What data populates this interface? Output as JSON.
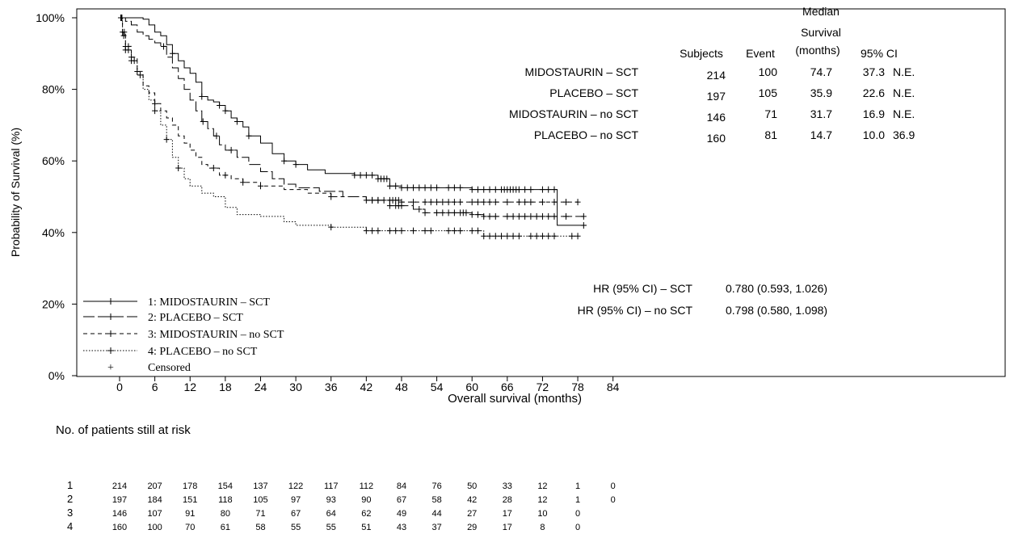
{
  "chart_data": {
    "type": "line",
    "subtype": "kaplan-meier",
    "ylabel": "Probability of Survival (%)",
    "xlabel": "Overall survival (months)",
    "xlim": [
      -7,
      84
    ],
    "ylim": [
      0,
      100
    ],
    "x_ticks": [
      0,
      6,
      12,
      18,
      24,
      30,
      36,
      42,
      48,
      54,
      60,
      66,
      72,
      78,
      84
    ],
    "y_ticks": [
      {
        "value": 0,
        "label": "0%"
      },
      {
        "value": 20,
        "label": "20%"
      },
      {
        "value": 40,
        "label": "40%"
      },
      {
        "value": 60,
        "label": "60%"
      },
      {
        "value": 80,
        "label": "80%"
      },
      {
        "value": 100,
        "label": "100%"
      }
    ],
    "series": [
      {
        "name": "1: MIDOSTAURIN – SCT",
        "dash": "solid",
        "end_x": 79.5,
        "points": [
          [
            0,
            100
          ],
          [
            2,
            100
          ],
          [
            4,
            99.6
          ],
          [
            5,
            98
          ],
          [
            6,
            96
          ],
          [
            7,
            95
          ],
          [
            8,
            92.5
          ],
          [
            9,
            90
          ],
          [
            10,
            88
          ],
          [
            11,
            86
          ],
          [
            12,
            84.5
          ],
          [
            13,
            82
          ],
          [
            14,
            78
          ],
          [
            15,
            77
          ],
          [
            16,
            76.5
          ],
          [
            17,
            75.5
          ],
          [
            18,
            74
          ],
          [
            19,
            72
          ],
          [
            20,
            71
          ],
          [
            21,
            69.5
          ],
          [
            22,
            67
          ],
          [
            24,
            65
          ],
          [
            26,
            62
          ],
          [
            28,
            60
          ],
          [
            30,
            59
          ],
          [
            32,
            57.5
          ],
          [
            35,
            56.5
          ],
          [
            40,
            56
          ],
          [
            44,
            55
          ],
          [
            46,
            53
          ],
          [
            48,
            52.5
          ],
          [
            55,
            52.5
          ],
          [
            60,
            52
          ],
          [
            74.5,
            52
          ],
          [
            74.5,
            42
          ],
          [
            79.5,
            42
          ]
        ],
        "censor": [
          9,
          14,
          17,
          18,
          20,
          22,
          28,
          30,
          40,
          41,
          42,
          43,
          44,
          44.5,
          45,
          45.5,
          46,
          47,
          48,
          49,
          50,
          51,
          52,
          53,
          54,
          56,
          57,
          58,
          60,
          61,
          62,
          63,
          64,
          65,
          65.5,
          66,
          66.5,
          67,
          67.5,
          68,
          69,
          70,
          72,
          73,
          74,
          79
        ]
      },
      {
        "name": "2: PLACEBO – SCT",
        "dash": "long-dash",
        "end_x": 79,
        "points": [
          [
            0,
            100
          ],
          [
            1,
            99
          ],
          [
            2,
            98
          ],
          [
            3,
            96
          ],
          [
            4,
            95
          ],
          [
            5,
            94
          ],
          [
            6,
            93
          ],
          [
            7,
            92
          ],
          [
            8,
            89
          ],
          [
            9,
            86
          ],
          [
            10,
            83
          ],
          [
            11,
            80
          ],
          [
            12,
            77
          ],
          [
            13,
            74
          ],
          [
            14,
            71
          ],
          [
            15,
            69
          ],
          [
            16,
            67
          ],
          [
            17,
            64.5
          ],
          [
            18,
            63
          ],
          [
            20,
            61
          ],
          [
            22,
            59
          ],
          [
            24,
            57
          ],
          [
            26,
            55
          ],
          [
            28,
            53.5
          ],
          [
            30,
            52.5
          ],
          [
            34,
            51.5
          ],
          [
            38,
            50
          ],
          [
            42,
            49
          ],
          [
            46,
            47.5
          ],
          [
            50,
            46.5
          ],
          [
            52,
            45.5
          ],
          [
            60,
            45
          ],
          [
            62,
            44.5
          ],
          [
            72,
            44.5
          ],
          [
            79,
            44.5
          ]
        ],
        "censor": [
          7.5,
          14.2,
          16.5,
          19,
          43,
          44,
          46,
          47,
          47.5,
          48,
          51,
          52,
          54,
          55,
          56,
          57,
          58,
          58.5,
          59,
          60,
          61,
          62,
          63,
          64,
          66,
          67,
          68,
          69,
          70,
          71,
          72,
          73,
          74,
          76,
          79
        ]
      },
      {
        "name": "3: MIDOSTAURIN – no SCT",
        "dash": "short-dash",
        "end_x": 78,
        "points": [
          [
            0,
            100
          ],
          [
            0.5,
            96
          ],
          [
            1,
            92
          ],
          [
            2,
            89
          ],
          [
            3,
            85
          ],
          [
            4,
            81
          ],
          [
            5,
            79
          ],
          [
            6,
            76
          ],
          [
            7,
            74
          ],
          [
            8,
            72
          ],
          [
            9,
            70
          ],
          [
            10,
            67
          ],
          [
            11,
            65
          ],
          [
            12,
            63
          ],
          [
            13,
            61
          ],
          [
            14,
            59
          ],
          [
            15,
            58
          ],
          [
            17,
            56
          ],
          [
            19,
            55
          ],
          [
            21,
            54
          ],
          [
            24,
            53
          ],
          [
            28,
            52
          ],
          [
            32,
            51
          ],
          [
            36,
            50
          ],
          [
            42,
            49
          ],
          [
            48,
            48.5
          ],
          [
            60,
            48.5
          ],
          [
            78,
            48.5
          ]
        ],
        "censor": [
          0.3,
          0.5,
          0.8,
          1,
          1.5,
          2,
          3,
          6,
          16,
          18,
          21,
          24,
          36,
          42,
          43,
          44,
          45,
          46,
          46.5,
          47,
          47.5,
          48,
          50,
          52,
          53,
          54,
          55,
          56,
          57,
          58,
          60,
          61,
          62,
          63,
          64,
          66,
          68,
          69,
          70,
          72,
          74,
          76,
          78
        ]
      },
      {
        "name": "4: PLACEBO – no SCT",
        "dash": "dotted",
        "end_x": 78,
        "points": [
          [
            0,
            100
          ],
          [
            0.5,
            95
          ],
          [
            1,
            91
          ],
          [
            2,
            88
          ],
          [
            3,
            84
          ],
          [
            4,
            80
          ],
          [
            5,
            77
          ],
          [
            6,
            74
          ],
          [
            7,
            70
          ],
          [
            8,
            66
          ],
          [
            9,
            61
          ],
          [
            10,
            58
          ],
          [
            11,
            55
          ],
          [
            12,
            53
          ],
          [
            14,
            51
          ],
          [
            16,
            50
          ],
          [
            18,
            47
          ],
          [
            20,
            45
          ],
          [
            24,
            44.5
          ],
          [
            28,
            43
          ],
          [
            30,
            42
          ],
          [
            36,
            41.5
          ],
          [
            42,
            40.5
          ],
          [
            60,
            40.5
          ],
          [
            62,
            39
          ],
          [
            78,
            39
          ]
        ],
        "censor": [
          0.2,
          0.4,
          0.7,
          1,
          1.5,
          2,
          2.5,
          3.5,
          6,
          8,
          10,
          36,
          42,
          43,
          44,
          46,
          47,
          48,
          50,
          52,
          53,
          56,
          57,
          58,
          60,
          61,
          62,
          63,
          64,
          65,
          66,
          67,
          68,
          70,
          71,
          72,
          73,
          74,
          77,
          78
        ]
      }
    ],
    "legend": {
      "placement": "bottom-left",
      "items": [
        "1: MIDOSTAURIN – SCT",
        "2: PLACEBO – SCT",
        "3: MIDOSTAURIN – no SCT",
        "4: PLACEBO – no SCT"
      ],
      "censored_label": "Censored",
      "censored_symbol": "+"
    },
    "summary_table": {
      "headers": [
        "Subjects",
        "Event",
        "Median",
        "Survival",
        "(months)",
        "95% CI"
      ],
      "rows": [
        {
          "label": "MIDOSTAURIN – SCT",
          "subjects": "214",
          "event": "100",
          "median": "74.7",
          "ci_low": "37.3",
          "ci_high": "N.E."
        },
        {
          "label": "PLACEBO – SCT",
          "subjects": "197",
          "event": "105",
          "median": "35.9",
          "ci_low": "22.6",
          "ci_high": "N.E."
        },
        {
          "label": "MIDOSTAURIN – no SCT",
          "subjects": "146",
          "event": "71",
          "median": "31.7",
          "ci_low": "16.9",
          "ci_high": "N.E."
        },
        {
          "label": "PLACEBO – no SCT",
          "subjects": "160",
          "event": "81",
          "median": "14.7",
          "ci_low": "10.0",
          "ci_high": "36.9"
        }
      ]
    },
    "hazard_ratios": [
      {
        "label": "HR (95% CI) – SCT",
        "value": "0.780 (0.593, 1.026)"
      },
      {
        "label": "HR (95% CI) – no SCT",
        "value": "0.798 (0.580, 1.098)"
      }
    ],
    "at_risk": {
      "title": "No. of patients still at risk",
      "rows": [
        {
          "label": "1",
          "values": [
            "214",
            "207",
            "178",
            "154",
            "137",
            "122",
            "117",
            "112",
            "84",
            "76",
            "50",
            "33",
            "12",
            "1",
            "0"
          ]
        },
        {
          "label": "2",
          "values": [
            "197",
            "184",
            "151",
            "118",
            "105",
            "97",
            "93",
            "90",
            "67",
            "58",
            "42",
            "28",
            "12",
            "1",
            "0"
          ]
        },
        {
          "label": "3",
          "values": [
            "146",
            "107",
            "91",
            "80",
            "71",
            "67",
            "64",
            "62",
            "49",
            "44",
            "27",
            "17",
            "10",
            "0"
          ]
        },
        {
          "label": "4",
          "values": [
            "160",
            "100",
            "70",
            "61",
            "58",
            "55",
            "55",
            "51",
            "43",
            "37",
            "29",
            "17",
            "8",
            "0"
          ]
        }
      ]
    }
  }
}
